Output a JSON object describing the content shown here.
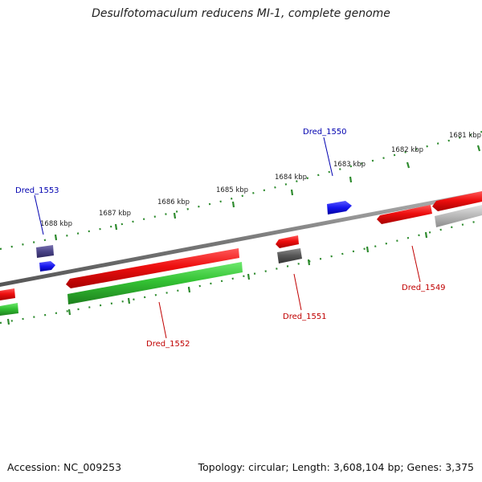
{
  "title": "Desulfotomaculum reducens MI-1, complete genome",
  "footer": {
    "accession": "Accession: NC_009253",
    "summary": "Topology: circular; Length: 3,608,104 bp; Genes: 3,375"
  },
  "colors": {
    "backbone": "#8a8a8a",
    "ticks": "#2e8b2e",
    "gene_forward_label": "#0000b0",
    "gene_reverse_label": "#c00000"
  },
  "ruler": {
    "labels": [
      "1681 kbp",
      "1682 kbp",
      "1683 kbp",
      "1684 kbp",
      "1685 kbp",
      "1686 kbp",
      "1687 kbp",
      "1688 kbp"
    ]
  },
  "genes": [
    {
      "id": "Dred_1553",
      "label": "Dred_1553",
      "strand": "+",
      "color": "#1a1aee"
    },
    {
      "id": "Dred_1550",
      "label": "Dred_1550",
      "strand": "+",
      "color": "#1a1aee"
    },
    {
      "id": "Dred_1552",
      "label": "Dred_1552",
      "strand": "-",
      "color": "#ee1111"
    },
    {
      "id": "Dred_1551",
      "label": "Dred_1551",
      "strand": "-",
      "color": "#ee1111"
    },
    {
      "id": "Dred_1549",
      "label": "Dred_1549",
      "strand": "-",
      "color": "#ee1111"
    }
  ]
}
